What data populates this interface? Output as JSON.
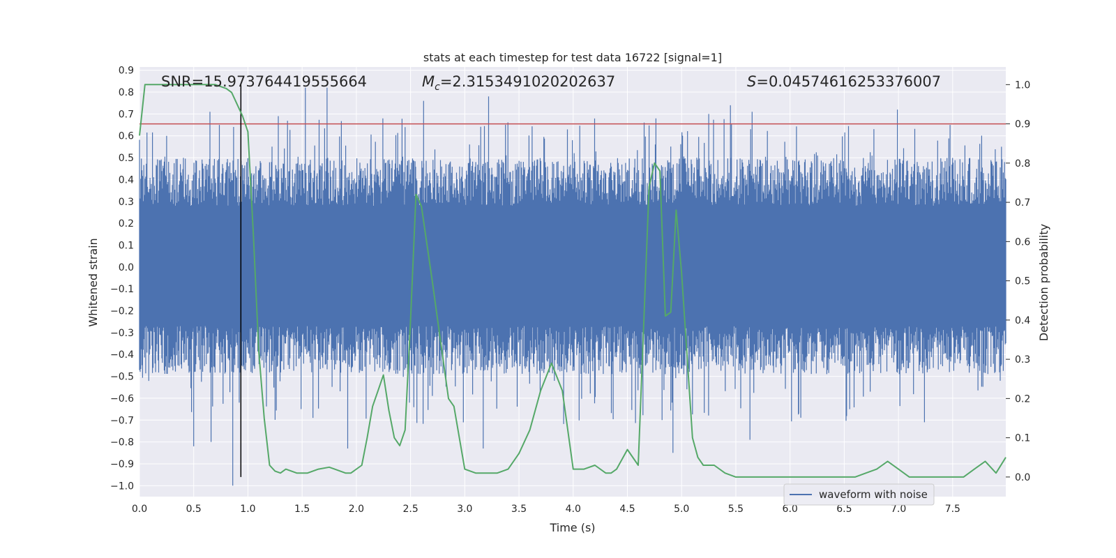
{
  "chart_data": {
    "type": "line",
    "title": "stats at each timestep for test data 16722 [signal=1]",
    "xlabel": "Time (s)",
    "ylabel": "Whitened strain",
    "y2label": "Detection probability",
    "xlim": [
      0.0,
      7.99
    ],
    "ylim": [
      -1.05,
      0.915
    ],
    "y2lim": [
      -0.05,
      1.045
    ],
    "xticks": [
      0.0,
      0.5,
      1.0,
      1.5,
      2.0,
      2.5,
      3.0,
      3.5,
      4.0,
      4.5,
      5.0,
      5.5,
      6.0,
      6.5,
      7.0,
      7.5
    ],
    "xtick_labels": [
      "0.0",
      "0.5",
      "1.0",
      "1.5",
      "2.0",
      "2.5",
      "3.0",
      "3.5",
      "4.0",
      "4.5",
      "5.0",
      "5.5",
      "6.0",
      "6.5",
      "7.0",
      "7.5"
    ],
    "yticks": [
      0.9,
      0.8,
      0.7,
      0.6,
      0.5,
      0.4,
      0.3,
      0.2,
      0.1,
      0.0,
      -0.1,
      -0.2,
      -0.3,
      -0.4,
      -0.5,
      -0.6,
      -0.7,
      -0.8,
      -0.9,
      -1.0
    ],
    "ytick_labels": [
      "0.9",
      "0.8",
      "0.7",
      "0.6",
      "0.5",
      "0.4",
      "0.3",
      "0.2",
      "0.1",
      "0.0",
      "−0.1",
      "−0.2",
      "−0.3",
      "−0.4",
      "−0.5",
      "−0.6",
      "−0.7",
      "−0.8",
      "−0.9",
      "−1.0"
    ],
    "y2ticks": [
      1.0,
      0.9,
      0.8,
      0.7,
      0.6,
      0.5,
      0.4,
      0.3,
      0.2,
      0.1,
      0.0
    ],
    "y2tick_labels": [
      "1.0",
      "0.9",
      "0.8",
      "0.7",
      "0.6",
      "0.5",
      "0.4",
      "0.3",
      "0.2",
      "0.1",
      "0.0"
    ],
    "annotations": {
      "snr": "SNR=15.973764419555664",
      "mc_symbol": "M",
      "mc_sub": "c",
      "mc_value": "=2.3153491020202637",
      "s_symbol": "S",
      "s_value": "=0.04574616253376007"
    },
    "threshold": 0.9,
    "marker_time": 0.935,
    "legend": {
      "label": "waveform with noise",
      "position": "lower right"
    },
    "waveform": {
      "name": "waveform with noise",
      "band_low": -0.27,
      "band_high": 0.28,
      "peaks_high": [
        [
          1.53,
          0.82
        ],
        [
          1.73,
          0.82
        ],
        [
          2.62,
          0.76
        ],
        [
          3.22,
          0.78
        ],
        [
          0.65,
          0.71
        ],
        [
          1.28,
          0.69
        ],
        [
          6.99,
          0.72
        ],
        [
          5.45,
          0.74
        ],
        [
          5.65,
          0.71
        ],
        [
          5.25,
          0.7
        ],
        [
          0.25,
          0.6
        ],
        [
          2.45,
          0.64
        ],
        [
          7.95,
          0.55
        ]
      ],
      "peaks_low": [
        [
          0.86,
          -1.0
        ],
        [
          0.92,
          -0.62
        ],
        [
          0.5,
          -0.82
        ],
        [
          0.66,
          -0.8
        ],
        [
          1.6,
          -0.69
        ],
        [
          1.92,
          -0.83
        ],
        [
          3.17,
          -0.83
        ],
        [
          4.92,
          -0.85
        ],
        [
          5.63,
          -0.79
        ],
        [
          7.24,
          -0.71
        ],
        [
          4.82,
          -0.7
        ],
        [
          6.08,
          -0.67
        ],
        [
          6.55,
          -0.65
        ]
      ]
    },
    "detection_probability": {
      "name": "detection probability",
      "x": [
        0.0,
        0.05,
        0.1,
        0.15,
        0.2,
        0.3,
        0.4,
        0.5,
        0.6,
        0.7,
        0.8,
        0.85,
        0.9,
        0.95,
        1.0,
        1.05,
        1.1,
        1.15,
        1.2,
        1.25,
        1.3,
        1.35,
        1.45,
        1.5,
        1.55,
        1.65,
        1.75,
        1.8,
        1.9,
        1.95,
        2.05,
        2.1,
        2.15,
        2.2,
        2.25,
        2.3,
        2.35,
        2.4,
        2.45,
        2.5,
        2.55,
        2.6,
        2.7,
        2.8,
        2.85,
        2.9,
        3.0,
        3.1,
        3.2,
        3.3,
        3.4,
        3.5,
        3.6,
        3.7,
        3.8,
        3.9,
        4.0,
        4.1,
        4.2,
        4.3,
        4.35,
        4.4,
        4.5,
        4.6,
        4.7,
        4.75,
        4.8,
        4.85,
        4.9,
        4.95,
        5.0,
        5.1,
        5.15,
        5.2,
        5.3,
        5.4,
        5.5,
        5.6,
        5.8,
        6.0,
        6.2,
        6.4,
        6.6,
        6.7,
        6.8,
        6.9,
        7.0,
        7.1,
        7.3,
        7.5,
        7.6,
        7.7,
        7.8,
        7.9,
        7.99
      ],
      "y": [
        0.87,
        1.0,
        1.0,
        1.0,
        1.0,
        1.0,
        1.0,
        1.0,
        1.0,
        1.0,
        0.99,
        0.98,
        0.95,
        0.92,
        0.88,
        0.62,
        0.32,
        0.15,
        0.03,
        0.015,
        0.01,
        0.02,
        0.01,
        0.01,
        0.01,
        0.02,
        0.025,
        0.02,
        0.01,
        0.01,
        0.03,
        0.1,
        0.18,
        0.22,
        0.26,
        0.17,
        0.1,
        0.08,
        0.12,
        0.4,
        0.72,
        0.69,
        0.5,
        0.3,
        0.2,
        0.18,
        0.02,
        0.01,
        0.01,
        0.01,
        0.02,
        0.06,
        0.12,
        0.22,
        0.29,
        0.22,
        0.02,
        0.02,
        0.03,
        0.01,
        0.01,
        0.02,
        0.07,
        0.03,
        0.74,
        0.8,
        0.78,
        0.41,
        0.42,
        0.68,
        0.52,
        0.1,
        0.05,
        0.03,
        0.03,
        0.01,
        0.0,
        0.0,
        0.0,
        0.0,
        0.0,
        0.0,
        0.0,
        0.01,
        0.02,
        0.04,
        0.02,
        0.0,
        0.0,
        0.0,
        0.0,
        0.02,
        0.04,
        0.01,
        0.05
      ]
    },
    "colors": {
      "waveform": "#4c72b0",
      "probability": "#55a868",
      "threshold": "#c44e52",
      "marker": "#000000",
      "plot_background": "#eaeaf2",
      "grid": "#ffffff"
    }
  }
}
